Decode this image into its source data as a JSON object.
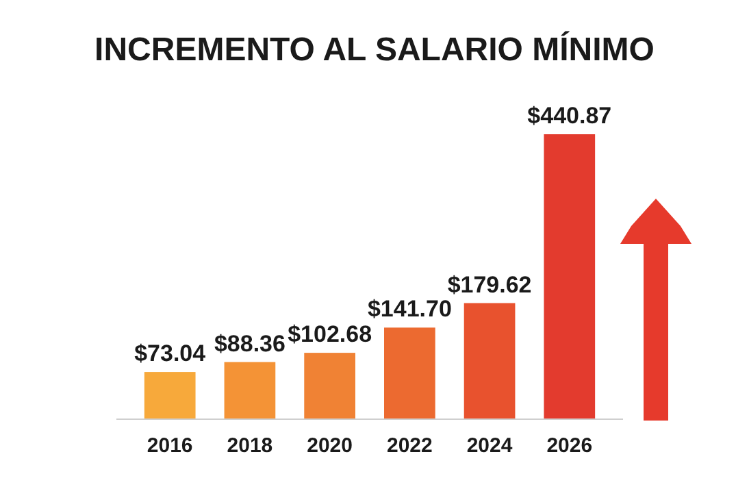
{
  "chart_data": {
    "type": "bar",
    "title": "INCREMENTO AL SALARIO MÍNIMO",
    "categories": [
      "2016",
      "2018",
      "2020",
      "2022",
      "2024",
      "2026"
    ],
    "values": [
      73.04,
      88.36,
      102.68,
      141.7,
      179.62,
      440.87
    ],
    "value_labels": [
      "$73.04",
      "$88.36",
      "$102.68",
      "$141.70",
      "$179.62",
      "$440.87"
    ],
    "colors": [
      "#f7a93b",
      "#f49336",
      "#f08234",
      "#ec6a30",
      "#e8522e",
      "#e33b2e"
    ]
  }
}
